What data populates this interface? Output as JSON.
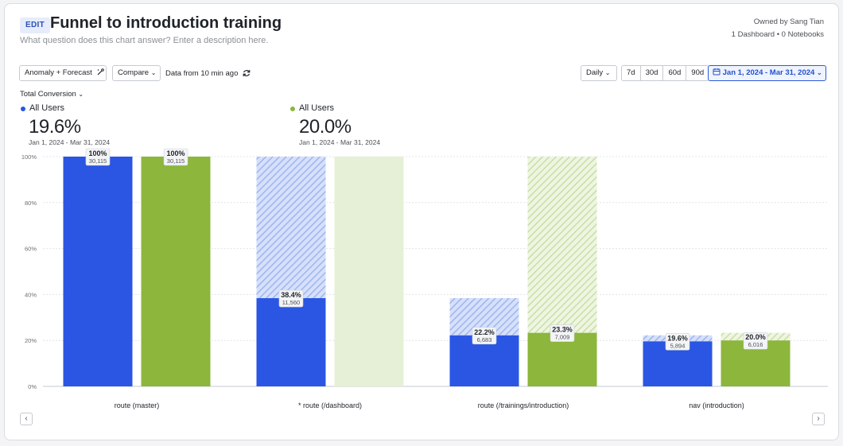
{
  "header": {
    "edit_label": "EDIT",
    "title": "Funnel to introduction training",
    "description": "What question does this chart answer? Enter a description here.",
    "owner": "Owned by Sang Tian",
    "usage": "1 Dashboard • 0 Notebooks"
  },
  "toolbar": {
    "anomaly_label": "Anomaly + Forecast",
    "compare_label": "Compare",
    "data_freshness": "Data from 10 min ago",
    "interval_label": "Daily",
    "ranges": [
      "7d",
      "30d",
      "60d",
      "90d"
    ],
    "date_range": "Jan 1, 2024 - Mar 31, 2024"
  },
  "metric_selector": "Total Conversion",
  "summaries": [
    {
      "name": "All Users",
      "value": "19.6%",
      "range": "Jan 1, 2024 - Mar 31, 2024",
      "color": "#2a56e3"
    },
    {
      "name": "All Users",
      "value": "20.0%",
      "range": "Jan 1, 2024 - Mar 31, 2024",
      "color": "#8cb63c"
    }
  ],
  "colors": {
    "blue": "#2a56e3",
    "blue_light": "#c5d3f7",
    "green": "#8cb63c",
    "green_light": "#e6f0d6"
  },
  "chart_data": {
    "type": "bar",
    "categories": [
      "route (master)",
      "* route (/dashboard)",
      "route (/trainings/introduction)",
      "nav (introduction)"
    ],
    "y_ticks": [
      "0%",
      "20%",
      "40%",
      "60%",
      "80%",
      "100%"
    ],
    "ylim": [
      0,
      100
    ],
    "grid": true,
    "series": [
      {
        "name": "All Users",
        "color": "#2a56e3",
        "values": [
          100,
          38.4,
          22.2,
          19.6
        ],
        "counts": [
          "30,115",
          "11,560",
          "6,683",
          "5,894"
        ],
        "labels": [
          "100%",
          "38.4%",
          "22.2%",
          "19.6%"
        ],
        "dropoff_top": [
          100,
          100,
          38.4,
          22.2
        ]
      },
      {
        "name": "All Users",
        "color": "#8cb63c",
        "values": [
          100,
          100,
          23.3,
          20.0
        ],
        "counts": [
          "30,115",
          "",
          "7,009",
          "6,016"
        ],
        "labels": [
          "100%",
          "",
          "23.3%",
          "20.0%"
        ],
        "dropoff_top": [
          100,
          100,
          100,
          23.3
        ],
        "empty_step": [
          false,
          true,
          false,
          false
        ]
      }
    ]
  }
}
